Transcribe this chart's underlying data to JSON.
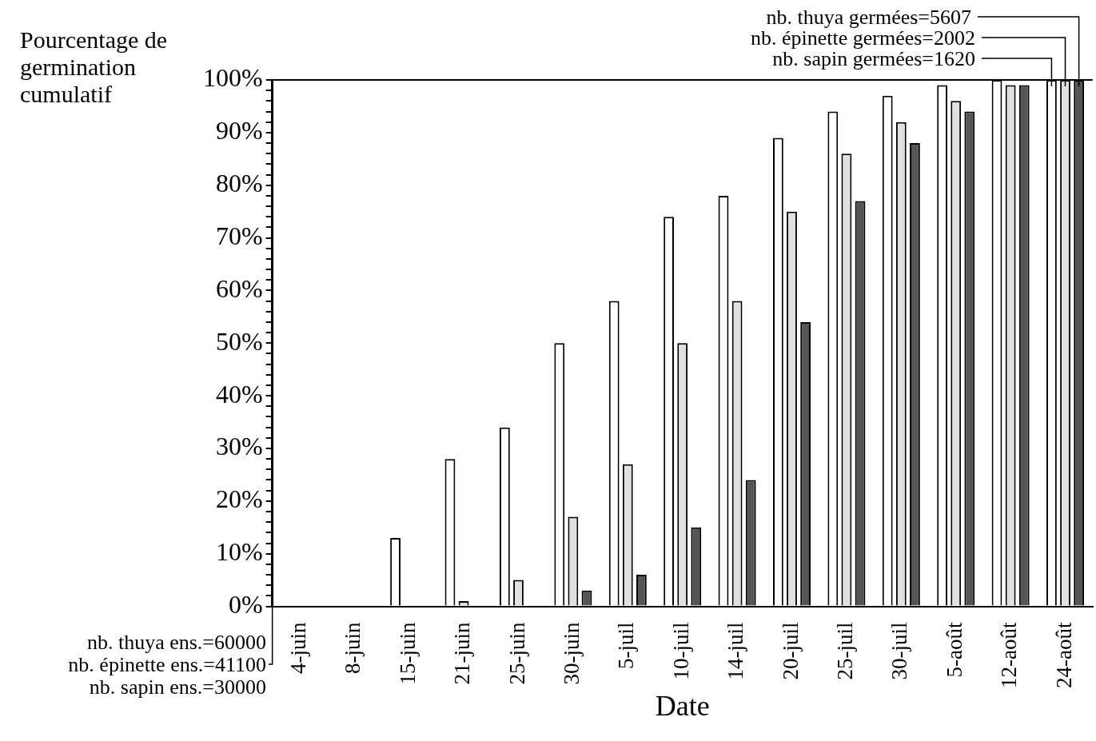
{
  "chart_data": {
    "type": "bar",
    "ylabel": "Pourcentage de germination cumulatif",
    "xlabel": "Date",
    "categories": [
      "4-juin",
      "8-juin",
      "15-juin",
      "21-juin",
      "25-juin",
      "30-juin",
      "5-juil",
      "10-juil",
      "14-juil",
      "20-juil",
      "25-juil",
      "30-juil",
      "5-août",
      "12-août",
      "24-août"
    ],
    "series": [
      {
        "color": "#ffffff",
        "values": [
          0,
          0,
          13,
          28,
          34,
          50,
          58,
          74,
          78,
          89,
          94,
          97,
          99,
          100,
          100
        ]
      },
      {
        "color": "#e0e0e0",
        "values": [
          0,
          0,
          0,
          1,
          5,
          17,
          27,
          50,
          58,
          75,
          86,
          92,
          96,
          99,
          100
        ]
      },
      {
        "color": "#555555",
        "values": [
          0,
          0,
          0,
          0,
          0,
          3,
          6,
          15,
          24,
          54,
          77,
          88,
          94,
          99,
          100
        ]
      }
    ],
    "ylim": [
      0,
      100
    ],
    "yticks": [
      {
        "value": 0,
        "label": "0%"
      },
      {
        "value": 2,
        "label": null
      },
      {
        "value": 4,
        "label": null
      },
      {
        "value": 6,
        "label": null
      },
      {
        "value": 8,
        "label": null
      },
      {
        "value": 10,
        "label": "10%"
      },
      {
        "value": 12,
        "label": null
      },
      {
        "value": 14,
        "label": null
      },
      {
        "value": 16,
        "label": null
      },
      {
        "value": 18,
        "label": null
      },
      {
        "value": 20,
        "label": "20%"
      },
      {
        "value": 22,
        "label": null
      },
      {
        "value": 24,
        "label": null
      },
      {
        "value": 26,
        "label": null
      },
      {
        "value": 28,
        "label": null
      },
      {
        "value": 30,
        "label": "30%"
      },
      {
        "value": 32,
        "label": null
      },
      {
        "value": 34,
        "label": null
      },
      {
        "value": 36,
        "label": null
      },
      {
        "value": 38,
        "label": null
      },
      {
        "value": 40,
        "label": "40%"
      },
      {
        "value": 42,
        "label": null
      },
      {
        "value": 44,
        "label": null
      },
      {
        "value": 46,
        "label": null
      },
      {
        "value": 48,
        "label": null
      },
      {
        "value": 50,
        "label": "50%"
      },
      {
        "value": 52,
        "label": null
      },
      {
        "value": 54,
        "label": null
      },
      {
        "value": 56,
        "label": null
      },
      {
        "value": 58,
        "label": null
      },
      {
        "value": 60,
        "label": "60%"
      },
      {
        "value": 62,
        "label": null
      },
      {
        "value": 64,
        "label": null
      },
      {
        "value": 66,
        "label": null
      },
      {
        "value": 68,
        "label": null
      },
      {
        "value": 70,
        "label": "70%"
      },
      {
        "value": 72,
        "label": null
      },
      {
        "value": 74,
        "label": null
      },
      {
        "value": 76,
        "label": null
      },
      {
        "value": 78,
        "label": null
      },
      {
        "value": 80,
        "label": "80%"
      },
      {
        "value": 82,
        "label": null
      },
      {
        "value": 84,
        "label": null
      },
      {
        "value": 86,
        "label": null
      },
      {
        "value": 88,
        "label": null
      },
      {
        "value": 90,
        "label": "90%"
      },
      {
        "value": 92,
        "label": null
      },
      {
        "value": 94,
        "label": null
      },
      {
        "value": 96,
        "label": null
      },
      {
        "value": 98,
        "label": null
      },
      {
        "value": 100,
        "label": "100%"
      }
    ],
    "grid": false,
    "legend": false,
    "annotations": [
      {
        "text": "nb. thuya germées=5607",
        "x": "24-août",
        "y": 100
      },
      {
        "text": "nb. épinette germées=2002",
        "x": "24-août",
        "y": 100
      },
      {
        "text": "nb. sapin germées=1620",
        "x": "24-août",
        "y": 100
      },
      "nb. thuya ens.=60000",
      "nb. épinette ens.=41100",
      "nb. sapin ens.=30000"
    ]
  }
}
